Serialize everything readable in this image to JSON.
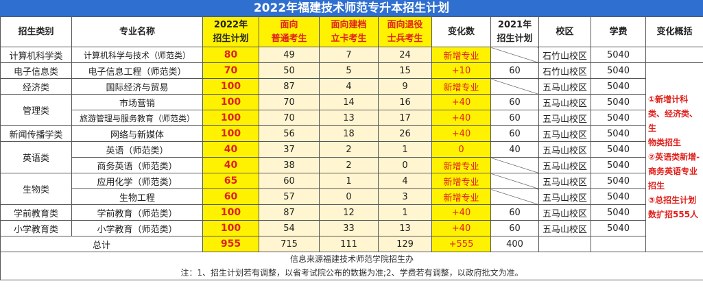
{
  "title": "2022年福建技术师范专升本招生计划",
  "headers": {
    "category": "招生类别",
    "major": "专业名称",
    "plan2022_l1": "2022年",
    "plan2022_l2": "招生计划",
    "general_l1": "面向",
    "general_l2": "普通考生",
    "poor_l1": "面向建档",
    "poor_l2": "立卡考生",
    "veteran_l1": "面向退役",
    "veteran_l2": "士兵考生",
    "change": "变化数",
    "plan2021_l1": "2021年",
    "plan2021_l2": "招生计划",
    "campus": "校区",
    "tuition": "学费",
    "summary": "变化概括"
  },
  "rows": [
    {
      "category": "计算机科学类",
      "major": "计算机科学与技术（师范类）",
      "plan2022": "80",
      "general": "49",
      "poor": "7",
      "veteran": "24",
      "change": "新增专业",
      "plan2021": "",
      "campus": "石竹山校区",
      "tuition": "5040"
    },
    {
      "category": "电子信息类",
      "major": "电子信息工程（师范类）",
      "plan2022": "70",
      "general": "50",
      "poor": "5",
      "veteran": "15",
      "change": "+10",
      "plan2021": "60",
      "campus": "石竹山校区",
      "tuition": "5040"
    },
    {
      "category": "经济类",
      "major": "国际经济与贸易",
      "plan2022": "100",
      "general": "87",
      "poor": "4",
      "veteran": "9",
      "change": "新增专业",
      "plan2021": "",
      "campus": "五马山校区",
      "tuition": "5040"
    },
    {
      "category": "管理类",
      "major": "市场营销",
      "plan2022": "100",
      "general": "70",
      "poor": "14",
      "veteran": "16",
      "change": "+40",
      "plan2021": "60",
      "campus": "五马山校区",
      "tuition": "5040"
    },
    {
      "category": "",
      "major": "旅游管理与服务教育（师范类）",
      "plan2022": "100",
      "general": "70",
      "poor": "13",
      "veteran": "17",
      "change": "+40",
      "plan2021": "60",
      "campus": "五马山校区",
      "tuition": "5040"
    },
    {
      "category": "新闻传播学类",
      "major": "网络与新媒体",
      "plan2022": "100",
      "general": "56",
      "poor": "18",
      "veteran": "26",
      "change": "+40",
      "plan2021": "60",
      "campus": "五马山校区",
      "tuition": "5040"
    },
    {
      "category": "英语类",
      "major": "英语（师范类）",
      "plan2022": "40",
      "general": "37",
      "poor": "2",
      "veteran": "1",
      "change": "0",
      "plan2021": "40",
      "campus": "五马山校区",
      "tuition": "5040"
    },
    {
      "category": "",
      "major": "商务英语（师范类）",
      "plan2022": "40",
      "general": "38",
      "poor": "2",
      "veteran": "0",
      "change": "新增专业",
      "plan2021": "",
      "campus": "五马山校区",
      "tuition": "5040"
    },
    {
      "category": "生物类",
      "major": "应用化学（师范类）",
      "plan2022": "65",
      "general": "60",
      "poor": "1",
      "veteran": "4",
      "change": "新增专业",
      "plan2021": "",
      "campus": "五马山校区",
      "tuition": "5040"
    },
    {
      "category": "",
      "major": "生物工程",
      "plan2022": "60",
      "general": "57",
      "poor": "0",
      "veteran": "3",
      "change": "新增专业",
      "plan2021": "",
      "campus": "五马山校区",
      "tuition": "5040"
    },
    {
      "category": "学前教育类",
      "major": "学前教育（师范类）",
      "plan2022": "100",
      "general": "87",
      "poor": "12",
      "veteran": "1",
      "change": "+40",
      "plan2021": "60",
      "campus": "五马山校区",
      "tuition": "5040"
    },
    {
      "category": "小学教育类",
      "major": "小学教育（师范类）",
      "plan2022": "100",
      "general": "54",
      "poor": "33",
      "veteran": "13",
      "change": "+40",
      "plan2021": "60",
      "campus": "五马山校区",
      "tuition": "5040"
    }
  ],
  "total": {
    "label": "总计",
    "plan2022": "955",
    "general": "715",
    "poor": "111",
    "veteran": "129",
    "change": "+555",
    "plan2021": "400"
  },
  "summary_lines": [
    "①新增计科类、经济类、生",
    "物类招生",
    "②英语类新增-",
    "商务英语专业",
    "招生",
    "③总招生计划",
    "数扩招555人"
  ],
  "source_note": "信息来源福建技术师范学院招生办",
  "footnote": "注：1、招生计划若有调整，以省考试院公布的数据为准;2、学费若有调整，以政府批文为准。",
  "colors": {
    "title_bg": "#2f6fd0",
    "highlight": "#fff200",
    "accent_red": "#e0201b",
    "pale": "#fff5d0"
  }
}
